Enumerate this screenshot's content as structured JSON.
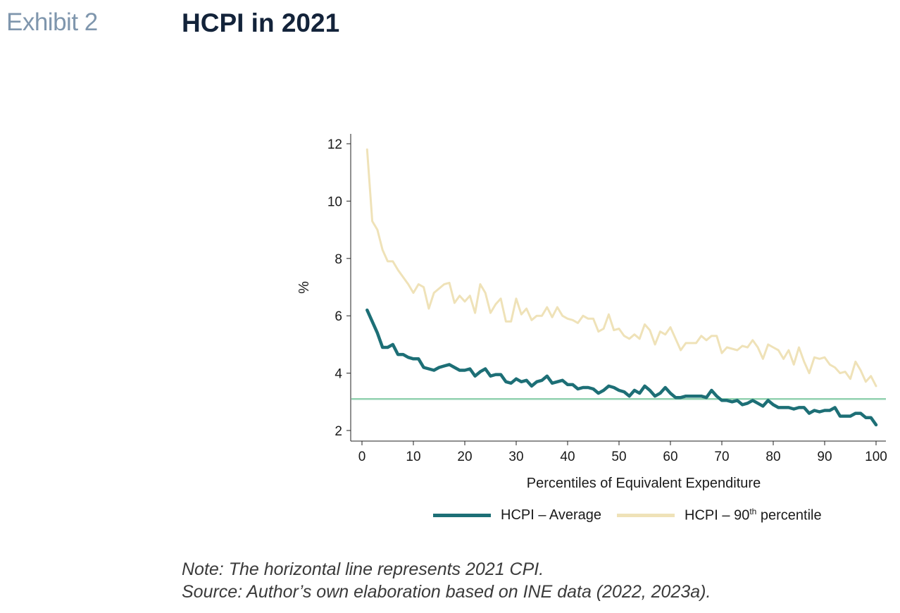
{
  "header": {
    "exhibit": "Exhibit 2",
    "title": "HCPI in 2021"
  },
  "notes": {
    "note": "Note: The horizontal line represents 2021 CPI.",
    "source": "Source: Author’s own elaboration based on INE data (2022, 2023a)."
  },
  "legend": {
    "avg_label": "HCPI – Average",
    "p90_prefix": "HCPI – 90",
    "p90_sup": "th",
    "p90_suffix": " percentile"
  },
  "chart_data": {
    "type": "line",
    "xlabel": "Percentiles of Equivalent Expenditure",
    "ylabel": "%",
    "xlim": [
      0,
      100
    ],
    "ylim": [
      2,
      12
    ],
    "xticks": [
      0,
      10,
      20,
      30,
      40,
      50,
      60,
      70,
      80,
      90,
      100
    ],
    "yticks": [
      2,
      4,
      6,
      8,
      10,
      12
    ],
    "grid": false,
    "reference_line": {
      "y": 3.1,
      "color": "#92d1b0"
    },
    "x": [
      1,
      2,
      3,
      4,
      5,
      6,
      7,
      8,
      9,
      10,
      11,
      12,
      13,
      14,
      15,
      16,
      17,
      18,
      19,
      20,
      21,
      22,
      23,
      24,
      25,
      26,
      27,
      28,
      29,
      30,
      31,
      32,
      33,
      34,
      35,
      36,
      37,
      38,
      39,
      40,
      41,
      42,
      43,
      44,
      45,
      46,
      47,
      48,
      49,
      50,
      51,
      52,
      53,
      54,
      55,
      56,
      57,
      58,
      59,
      60,
      61,
      62,
      63,
      64,
      65,
      66,
      67,
      68,
      69,
      70,
      71,
      72,
      73,
      74,
      75,
      76,
      77,
      78,
      79,
      80,
      81,
      82,
      83,
      84,
      85,
      86,
      87,
      88,
      89,
      90,
      91,
      92,
      93,
      94,
      95,
      96,
      97,
      98,
      99,
      100
    ],
    "series": [
      {
        "name": "HCPI – Average",
        "color": "#1d6f76",
        "values": [
          6.2,
          5.8,
          5.4,
          4.9,
          4.9,
          5.0,
          4.65,
          4.65,
          4.55,
          4.5,
          4.5,
          4.2,
          4.15,
          4.1,
          4.2,
          4.25,
          4.3,
          4.2,
          4.1,
          4.1,
          4.15,
          3.9,
          4.05,
          4.15,
          3.9,
          3.95,
          3.95,
          3.7,
          3.65,
          3.8,
          3.7,
          3.75,
          3.55,
          3.7,
          3.75,
          3.9,
          3.65,
          3.7,
          3.75,
          3.6,
          3.6,
          3.45,
          3.5,
          3.5,
          3.45,
          3.3,
          3.4,
          3.55,
          3.5,
          3.4,
          3.35,
          3.2,
          3.4,
          3.3,
          3.55,
          3.4,
          3.2,
          3.3,
          3.5,
          3.3,
          3.15,
          3.15,
          3.2,
          3.2,
          3.2,
          3.2,
          3.15,
          3.4,
          3.2,
          3.05,
          3.05,
          3.0,
          3.05,
          2.9,
          2.95,
          3.05,
          2.95,
          2.85,
          3.05,
          2.9,
          2.8,
          2.8,
          2.8,
          2.75,
          2.8,
          2.8,
          2.6,
          2.7,
          2.65,
          2.7,
          2.7,
          2.8,
          2.5,
          2.5,
          2.5,
          2.6,
          2.6,
          2.45,
          2.45,
          2.2
        ]
      },
      {
        "name": "HCPI – 90th percentile",
        "color": "#efe2b8",
        "values": [
          11.8,
          9.3,
          9.0,
          8.3,
          7.9,
          7.9,
          7.6,
          7.35,
          7.1,
          6.8,
          7.1,
          7.0,
          6.25,
          6.8,
          6.95,
          7.1,
          7.15,
          6.45,
          6.7,
          6.5,
          6.7,
          6.1,
          7.1,
          6.8,
          6.1,
          6.4,
          6.6,
          5.8,
          5.8,
          6.6,
          6.05,
          6.25,
          5.85,
          6.0,
          6.0,
          6.3,
          5.95,
          6.3,
          6.0,
          5.9,
          5.85,
          5.75,
          6.0,
          5.9,
          5.9,
          5.45,
          5.55,
          6.05,
          5.5,
          5.55,
          5.3,
          5.2,
          5.35,
          5.2,
          5.7,
          5.5,
          5.0,
          5.45,
          5.35,
          5.6,
          5.2,
          4.8,
          5.05,
          5.05,
          5.05,
          5.3,
          5.15,
          5.3,
          5.3,
          4.7,
          4.9,
          4.85,
          4.8,
          4.95,
          4.9,
          5.15,
          4.9,
          4.5,
          5.0,
          4.9,
          4.8,
          4.5,
          4.8,
          4.3,
          4.9,
          4.4,
          4.0,
          4.55,
          4.5,
          4.55,
          4.3,
          4.2,
          4.0,
          4.05,
          3.8,
          4.4,
          4.1,
          3.7,
          3.9,
          3.55
        ]
      }
    ]
  }
}
